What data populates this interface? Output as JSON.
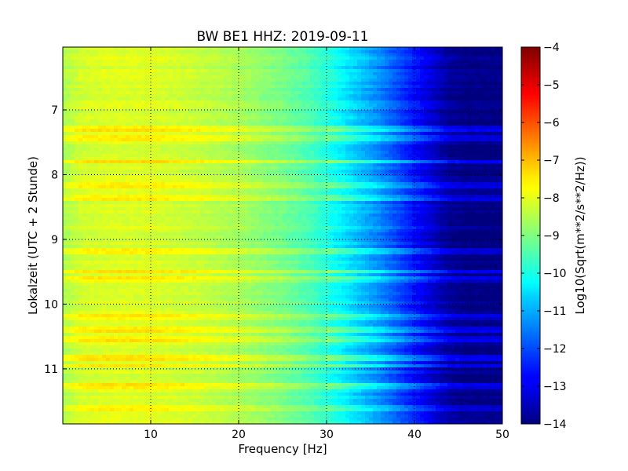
{
  "chart_data": {
    "type": "heatmap",
    "title": "BW BE1 HHZ: 2019-09-11",
    "xlabel": "Frequency [Hz]",
    "ylabel": "Lokalzeit (UTC + 2 Stunde)",
    "xlim": [
      0,
      50
    ],
    "ylim": [
      6.03,
      11.85
    ],
    "y_inverted": true,
    "x_ticks": [
      10,
      20,
      30,
      40,
      50
    ],
    "y_ticks": [
      7,
      8,
      9,
      10,
      11
    ],
    "grid": true,
    "grid_style": "dotted",
    "colormap": "jet",
    "colorbar": {
      "label": "Log10(Sqrt(m**2/s**2/Hz))",
      "range": [
        -14,
        -4
      ],
      "ticks": [
        -14,
        -13,
        -12,
        -11,
        -10,
        -9,
        -8,
        -7,
        -6,
        -5,
        -4
      ]
    },
    "frequency_profile": {
      "frequency_hz": [
        0,
        2,
        5,
        10,
        15,
        20,
        25,
        28,
        30,
        32,
        34,
        36,
        38,
        40,
        42,
        44,
        46,
        50
      ],
      "log10_amplitude": [
        -8.6,
        -8.2,
        -8.1,
        -8.1,
        -8.3,
        -8.6,
        -9.1,
        -9.5,
        -9.9,
        -10.4,
        -10.9,
        -11.4,
        -12.0,
        -12.6,
        -13.2,
        -13.8,
        -14.0,
        -14.0
      ]
    },
    "high_energy_bands_hours": [
      7.3,
      7.45,
      7.8,
      8.15,
      8.35,
      9.2,
      9.5,
      9.6,
      10.2,
      10.4,
      10.55,
      10.85,
      10.95,
      11.25,
      11.6
    ]
  }
}
